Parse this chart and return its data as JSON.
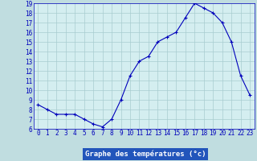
{
  "hours": [
    0,
    1,
    2,
    3,
    4,
    5,
    6,
    7,
    8,
    9,
    10,
    11,
    12,
    13,
    14,
    15,
    16,
    17,
    18,
    19,
    20,
    21,
    22,
    23
  ],
  "temps": [
    8.5,
    8.0,
    7.5,
    7.5,
    7.5,
    7.0,
    6.5,
    6.2,
    7.0,
    9.0,
    11.5,
    13.0,
    13.5,
    15.0,
    15.5,
    16.0,
    17.5,
    19.0,
    18.5,
    18.0,
    17.0,
    15.0,
    11.5,
    9.5
  ],
  "xlabel": "Graphe des températures (°c)",
  "ylim": [
    6,
    19
  ],
  "xlim": [
    -0.5,
    23.5
  ],
  "yticks": [
    6,
    7,
    8,
    9,
    10,
    11,
    12,
    13,
    14,
    15,
    16,
    17,
    18,
    19
  ],
  "xticks": [
    0,
    1,
    2,
    3,
    4,
    5,
    6,
    7,
    8,
    9,
    10,
    11,
    12,
    13,
    14,
    15,
    16,
    17,
    18,
    19,
    20,
    21,
    22,
    23
  ],
  "line_color": "#0000bb",
  "bg_color": "#d4eef0",
  "grid_color": "#a8ccd0",
  "outer_bg": "#c0dde0",
  "label_bg": "#2255bb",
  "label_text_color": "#ffffff",
  "tick_label_color": "#0000bb",
  "font_size_tick": 5.5,
  "font_size_label": 6.5
}
